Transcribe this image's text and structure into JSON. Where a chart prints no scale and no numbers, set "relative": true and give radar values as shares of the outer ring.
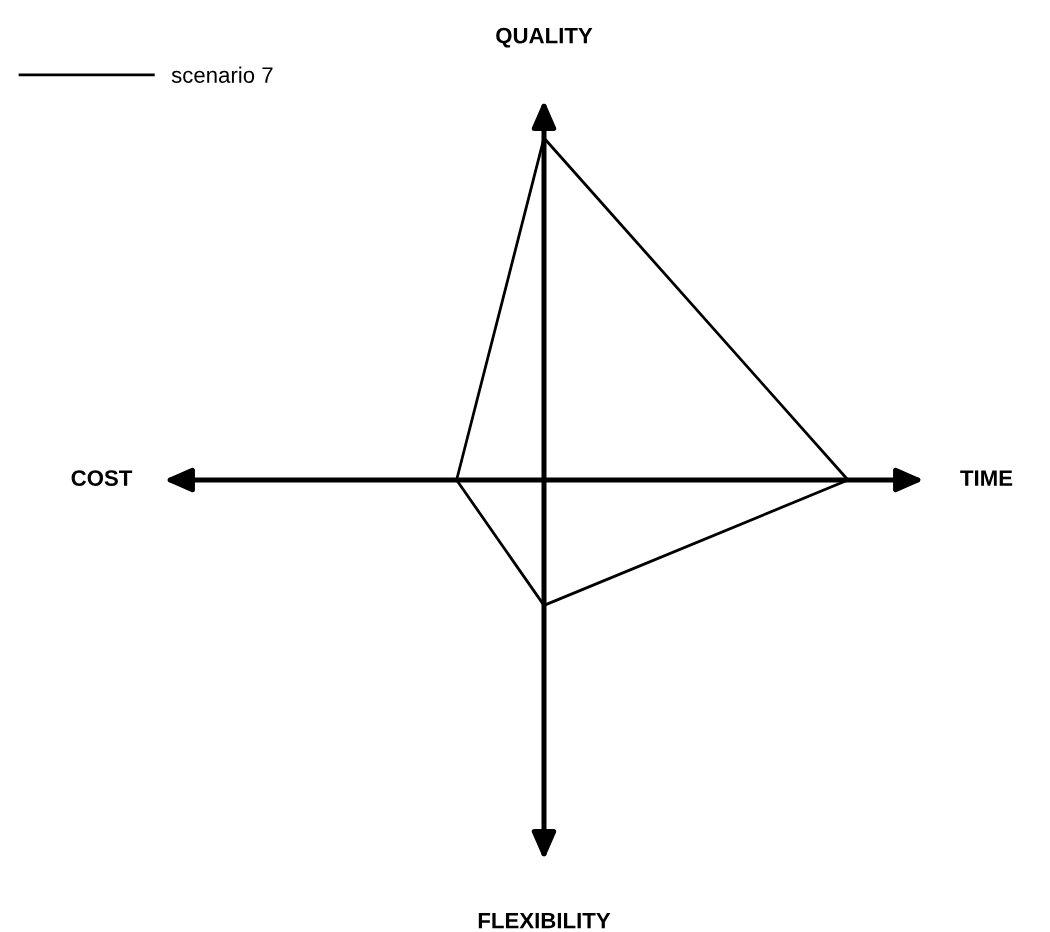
{
  "chart_data": {
    "type": "radar",
    "relative": true,
    "legend": "top left",
    "categories": [
      "QUALITY",
      "TIME",
      "FLEXIBILITY",
      "COST"
    ],
    "series": [
      {
        "name": "scenario 7",
        "color": "#000000",
        "values": [
          0.9,
          0.8,
          0.33,
          0.23
        ]
      }
    ]
  }
}
